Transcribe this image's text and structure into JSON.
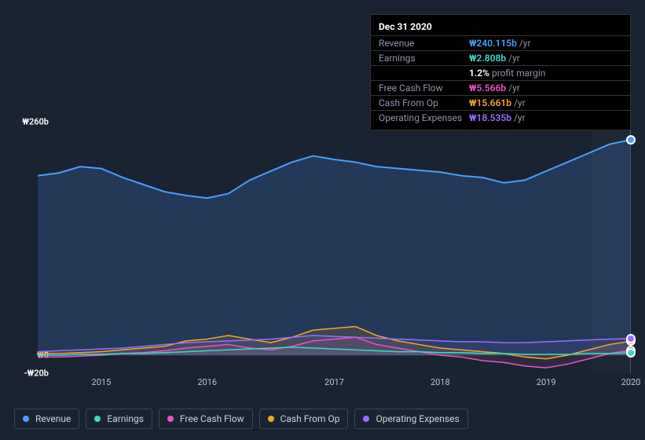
{
  "tooltip": {
    "date": "Dec 31 2020",
    "rows": [
      {
        "label": "Revenue",
        "value": "₩240.115b",
        "suffix": "/yr",
        "color": "#4a9eff"
      },
      {
        "label": "Earnings",
        "value": "₩2.808b",
        "suffix": "/yr",
        "color": "#3dd9c4"
      },
      {
        "label": "",
        "value": "1.2%",
        "suffix": "profit margin",
        "color": "#ffffff"
      },
      {
        "label": "Free Cash Flow",
        "value": "₩5.566b",
        "suffix": "/yr",
        "color": "#e855c4"
      },
      {
        "label": "Cash From Op",
        "value": "₩15.661b",
        "suffix": "/yr",
        "color": "#f5a623"
      },
      {
        "label": "Operating Expenses",
        "value": "₩18.535b",
        "suffix": "/yr",
        "color": "#9b6dff"
      }
    ]
  },
  "chart": {
    "type": "area-line",
    "background": "#1a2332",
    "plot_bg": "#1e2a3d",
    "grid_color": "#2a3548",
    "ymin": -20,
    "ymax": 260,
    "yticks": [
      {
        "v": 260,
        "label": "₩260b"
      },
      {
        "v": 0,
        "label": "₩0"
      },
      {
        "v": -20,
        "label": "-₩20b"
      }
    ],
    "xmin": 0,
    "xmax": 28,
    "xticks": [
      {
        "v": 3,
        "label": "2015"
      },
      {
        "v": 8,
        "label": "2016"
      },
      {
        "v": 14,
        "label": "2017"
      },
      {
        "v": 19,
        "label": "2018"
      },
      {
        "v": 24,
        "label": "2019"
      },
      {
        "v": 28,
        "label": "2020"
      }
    ],
    "highlight_x": 28,
    "series": [
      {
        "name": "Revenue",
        "color": "#4a9eff",
        "fill_opacity": 0.18,
        "width": 2,
        "data": [
          200,
          203,
          210,
          208,
          198,
          190,
          182,
          178,
          175,
          180,
          195,
          205,
          215,
          222,
          218,
          215,
          210,
          208,
          206,
          204,
          200,
          198,
          192,
          195,
          205,
          215,
          225,
          235,
          240
        ]
      },
      {
        "name": "Cash From Op",
        "color": "#f5a623",
        "fill_opacity": 0.12,
        "width": 1.5,
        "data": [
          2,
          2,
          3,
          4,
          6,
          8,
          10,
          16,
          18,
          22,
          18,
          14,
          20,
          28,
          30,
          32,
          22,
          16,
          12,
          8,
          6,
          4,
          2,
          -2,
          -4,
          0,
          6,
          12,
          15.7
        ]
      },
      {
        "name": "Operating Expenses",
        "color": "#9b6dff",
        "fill_opacity": 0.1,
        "width": 1.5,
        "data": [
          4,
          5,
          6,
          7,
          8,
          10,
          12,
          14,
          15,
          16,
          17,
          18,
          20,
          22,
          21,
          20,
          19,
          18,
          17,
          16,
          15,
          15,
          14,
          14,
          15,
          16,
          17,
          18,
          18.5
        ]
      },
      {
        "name": "Free Cash Flow",
        "color": "#e855c4",
        "fill_opacity": 0.1,
        "width": 1.5,
        "data": [
          -2,
          -2,
          -1,
          0,
          2,
          3,
          5,
          8,
          10,
          12,
          8,
          6,
          10,
          16,
          18,
          20,
          12,
          8,
          4,
          0,
          -2,
          -6,
          -8,
          -12,
          -14,
          -10,
          -4,
          2,
          5.6
        ]
      },
      {
        "name": "Earnings",
        "color": "#3dd9c4",
        "fill_opacity": 0.08,
        "width": 1.5,
        "data": [
          0,
          0,
          1,
          1,
          2,
          2,
          3,
          4,
          5,
          6,
          7,
          8,
          9,
          8,
          7,
          6,
          5,
          4,
          4,
          3,
          3,
          2,
          2,
          1,
          1,
          1,
          2,
          2,
          2.8
        ]
      }
    ],
    "legend": [
      {
        "label": "Revenue",
        "color": "#4a9eff"
      },
      {
        "label": "Earnings",
        "color": "#3dd9c4"
      },
      {
        "label": "Free Cash Flow",
        "color": "#e855c4"
      },
      {
        "label": "Cash From Op",
        "color": "#f5a623"
      },
      {
        "label": "Operating Expenses",
        "color": "#9b6dff"
      }
    ]
  }
}
